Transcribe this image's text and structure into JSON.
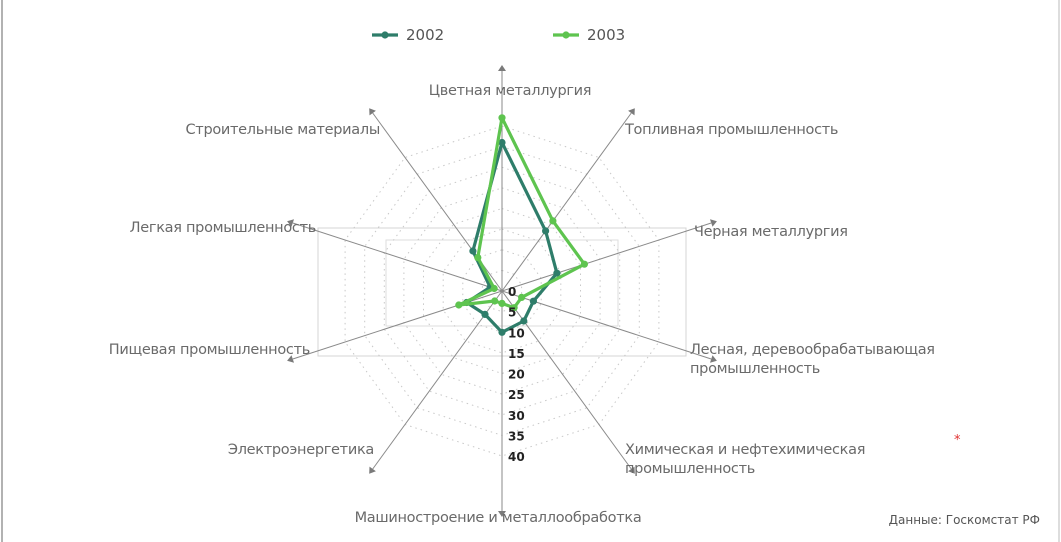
{
  "chart_data": {
    "type": "radar",
    "categories": [
      "Цветная металлургия",
      "Топливная промышленность",
      "Черная металлургия",
      "Лесная, деревообрабатывающая промышленность",
      "Химическая и нефтехимическая промышленность",
      "Машиностроение и металлообработка",
      "Электроэнергетика",
      "Пищевая промышленность",
      "Легкая промышленность",
      "Строительные материалы"
    ],
    "category_lines": [
      [
        "Цветная металлургия"
      ],
      [
        "Топливная промышленность"
      ],
      [
        "Черная металлургия"
      ],
      [
        "Лесная, деревообрабатывающая",
        "промышленность"
      ],
      [
        "Химическая и нефтехимическая",
        "промышленность"
      ],
      [
        "Машиностроение и металлообработка"
      ],
      [
        "Электроэнергетика"
      ],
      [
        "Пищевая промышленность"
      ],
      [
        "Легкая промышленность"
      ],
      [
        "Строительные материалы"
      ]
    ],
    "footnote_mark": "*",
    "footnote_color": "#e03030",
    "series": [
      {
        "name": "2002",
        "color": "#2e7d6a",
        "values": [
          36,
          18,
          14,
          8,
          9,
          10,
          7,
          9,
          3,
          12
        ]
      },
      {
        "name": "2003",
        "color": "#5ec44f",
        "values": [
          42,
          21,
          21,
          5,
          5,
          3,
          3,
          11,
          2,
          10
        ]
      }
    ],
    "r_ticks": [
      0,
      5,
      10,
      15,
      20,
      25,
      30,
      35,
      40
    ],
    "rlim": [
      0,
      40
    ],
    "grid": true,
    "legend_position": "top-center",
    "source": "Данные: Госкомстат РФ"
  }
}
